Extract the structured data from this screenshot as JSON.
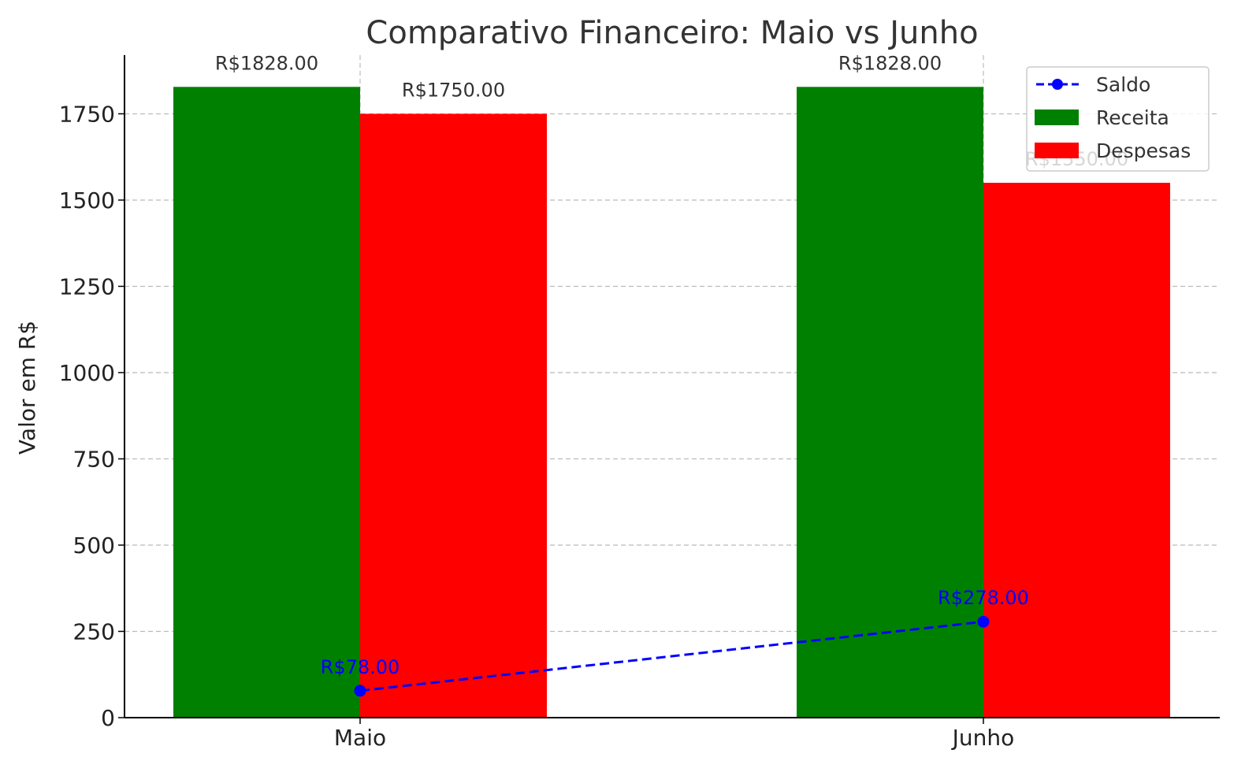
{
  "chart_data": {
    "type": "bar",
    "title": "Comparativo Financeiro: Maio vs Junho",
    "xlabel": "",
    "ylabel": "Valor em R$",
    "categories": [
      "Maio",
      "Junho"
    ],
    "ylim": [
      0,
      1920
    ],
    "yticks": [
      0,
      250,
      500,
      750,
      1000,
      1250,
      1500,
      1750
    ],
    "grid": true,
    "legend_position": "top-right",
    "series": [
      {
        "name": "Receita",
        "kind": "bar",
        "color": "#008000",
        "values": [
          1828,
          1828
        ],
        "labels": [
          "R$1828.00",
          "R$1828.00"
        ]
      },
      {
        "name": "Despesas",
        "kind": "bar",
        "color": "#ff0000",
        "values": [
          1750,
          1550
        ],
        "labels": [
          "R$1750.00",
          "R$1550.00"
        ]
      },
      {
        "name": "Saldo",
        "kind": "line",
        "style": "dashed",
        "marker": "circle",
        "color": "#0000ff",
        "values": [
          78,
          278
        ],
        "labels": [
          "R$78.00",
          "R$278.00"
        ]
      }
    ],
    "legend_order": [
      "Saldo",
      "Receita",
      "Despesas"
    ]
  }
}
